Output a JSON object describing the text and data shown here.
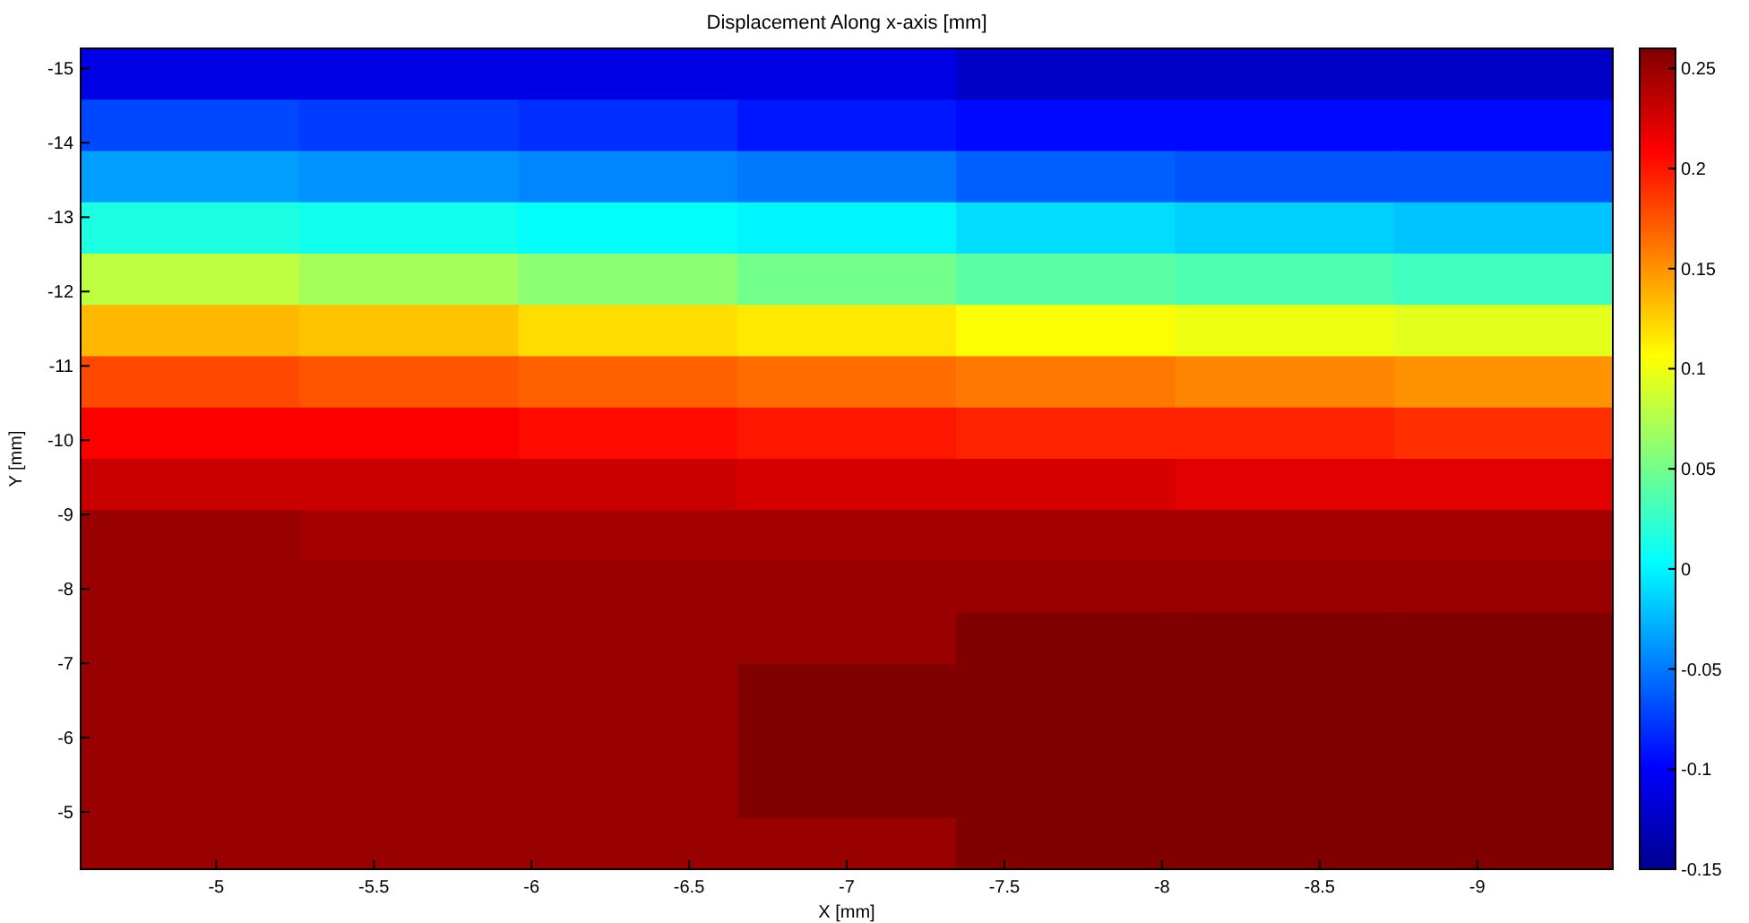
{
  "chart_data": {
    "type": "heatmap",
    "title": "Displacement Along x-axis [mm]",
    "xlabel": "X [mm]",
    "ylabel": "Y [mm]",
    "xlim": [
      -4.57,
      -9.43
    ],
    "ylim": [
      -4.23,
      -15.27
    ],
    "xticks": [
      -5,
      -5.5,
      -6,
      -6.5,
      -7,
      -7.5,
      -8,
      -8.5,
      -9
    ],
    "yticks": [
      -15,
      -14,
      -13,
      -12,
      -11,
      -10,
      -9,
      -8,
      -7,
      -6,
      -5
    ],
    "clim": [
      -0.15,
      0.26
    ],
    "cticks": [
      -0.15,
      -0.1,
      -0.05,
      0,
      0.05,
      0.1,
      0.15,
      0.2,
      0.25
    ],
    "cells": [
      [
        -0.11,
        -0.11,
        -0.11,
        -0.11,
        -0.125,
        -0.125,
        -0.125
      ],
      [
        -0.07,
        -0.075,
        -0.08,
        -0.09,
        -0.095,
        -0.095,
        -0.095
      ],
      [
        -0.035,
        -0.04,
        -0.045,
        -0.05,
        -0.06,
        -0.065,
        -0.065
      ],
      [
        0.015,
        0.01,
        0.005,
        0.0,
        -0.01,
        -0.015,
        -0.02
      ],
      [
        0.08,
        0.07,
        0.06,
        0.05,
        0.04,
        0.035,
        0.03
      ],
      [
        0.135,
        0.13,
        0.12,
        0.115,
        0.105,
        0.1,
        0.095
      ],
      [
        0.18,
        0.175,
        0.17,
        0.165,
        0.16,
        0.155,
        0.15
      ],
      [
        0.21,
        0.21,
        0.205,
        0.2,
        0.195,
        0.195,
        0.19
      ],
      [
        0.23,
        0.23,
        0.23,
        0.225,
        0.225,
        0.22,
        0.22
      ],
      [
        0.25,
        0.245,
        0.245,
        0.245,
        0.245,
        0.245,
        0.245
      ],
      [
        0.25,
        0.25,
        0.25,
        0.25,
        0.25,
        0.25,
        0.25
      ],
      [
        0.25,
        0.25,
        0.25,
        0.25,
        0.26,
        0.26,
        0.26
      ],
      [
        0.25,
        0.25,
        0.25,
        0.26,
        0.26,
        0.26,
        0.26
      ],
      [
        0.25,
        0.25,
        0.25,
        0.26,
        0.26,
        0.26,
        0.26
      ],
      [
        0.25,
        0.25,
        0.25,
        0.26,
        0.26,
        0.26,
        0.26
      ],
      [
        0.25,
        0.25,
        0.25,
        0.25,
        0.26,
        0.26,
        0.26
      ]
    ]
  }
}
